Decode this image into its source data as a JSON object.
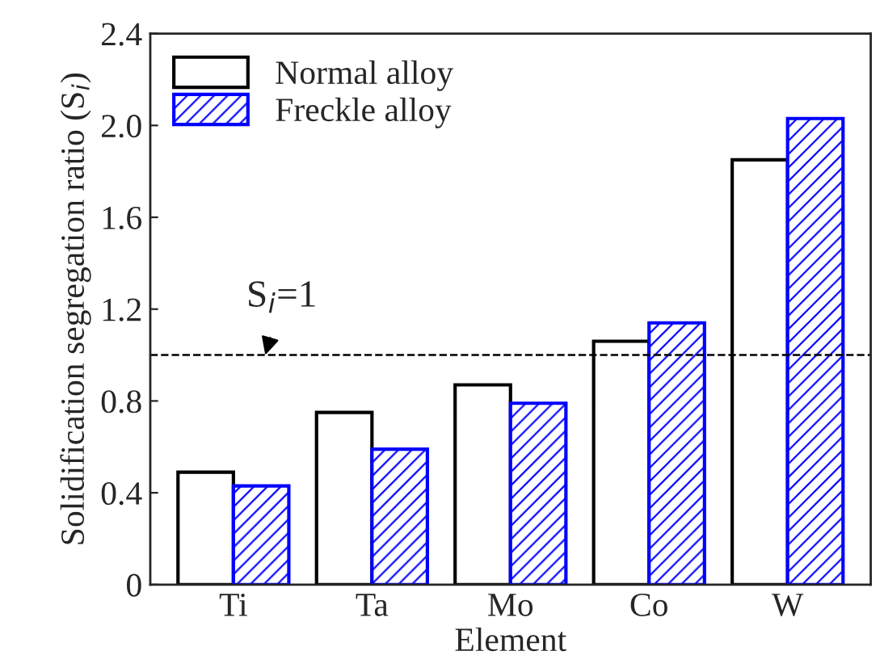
{
  "chart_data": {
    "type": "bar",
    "xlabel": "Element",
    "ylabel": "Solidification segregation ratio (S$_{i}$)",
    "categories": [
      "Ti",
      "Ta",
      "Mo",
      "Co",
      "W"
    ],
    "series": [
      {
        "name": "Normal alloy",
        "color": "#000000",
        "values": [
          0.49,
          0.75,
          0.87,
          1.06,
          1.85
        ]
      },
      {
        "name": "Freckle alloy",
        "color": "#0000ff",
        "values": [
          0.43,
          0.59,
          0.79,
          1.14,
          2.03
        ]
      }
    ],
    "ylim": [
      0,
      2.4
    ],
    "yticks": [
      {
        "value": 0,
        "label": "0"
      },
      {
        "value": 0.4,
        "label": "0.4"
      },
      {
        "value": 0.8,
        "label": "0.8"
      },
      {
        "value": 1.2,
        "label": "1.2"
      },
      {
        "value": 1.6,
        "label": "1.6"
      },
      {
        "value": 2.0,
        "label": "2.0"
      },
      {
        "value": 2.4,
        "label": "2.4"
      }
    ],
    "ref_lines": [
      {
        "axis": "y",
        "value": 1,
        "label": "S$_{i}$=1",
        "line_style": "dashed",
        "color": "#000000"
      }
    ],
    "legend": "top left",
    "grid": false
  }
}
